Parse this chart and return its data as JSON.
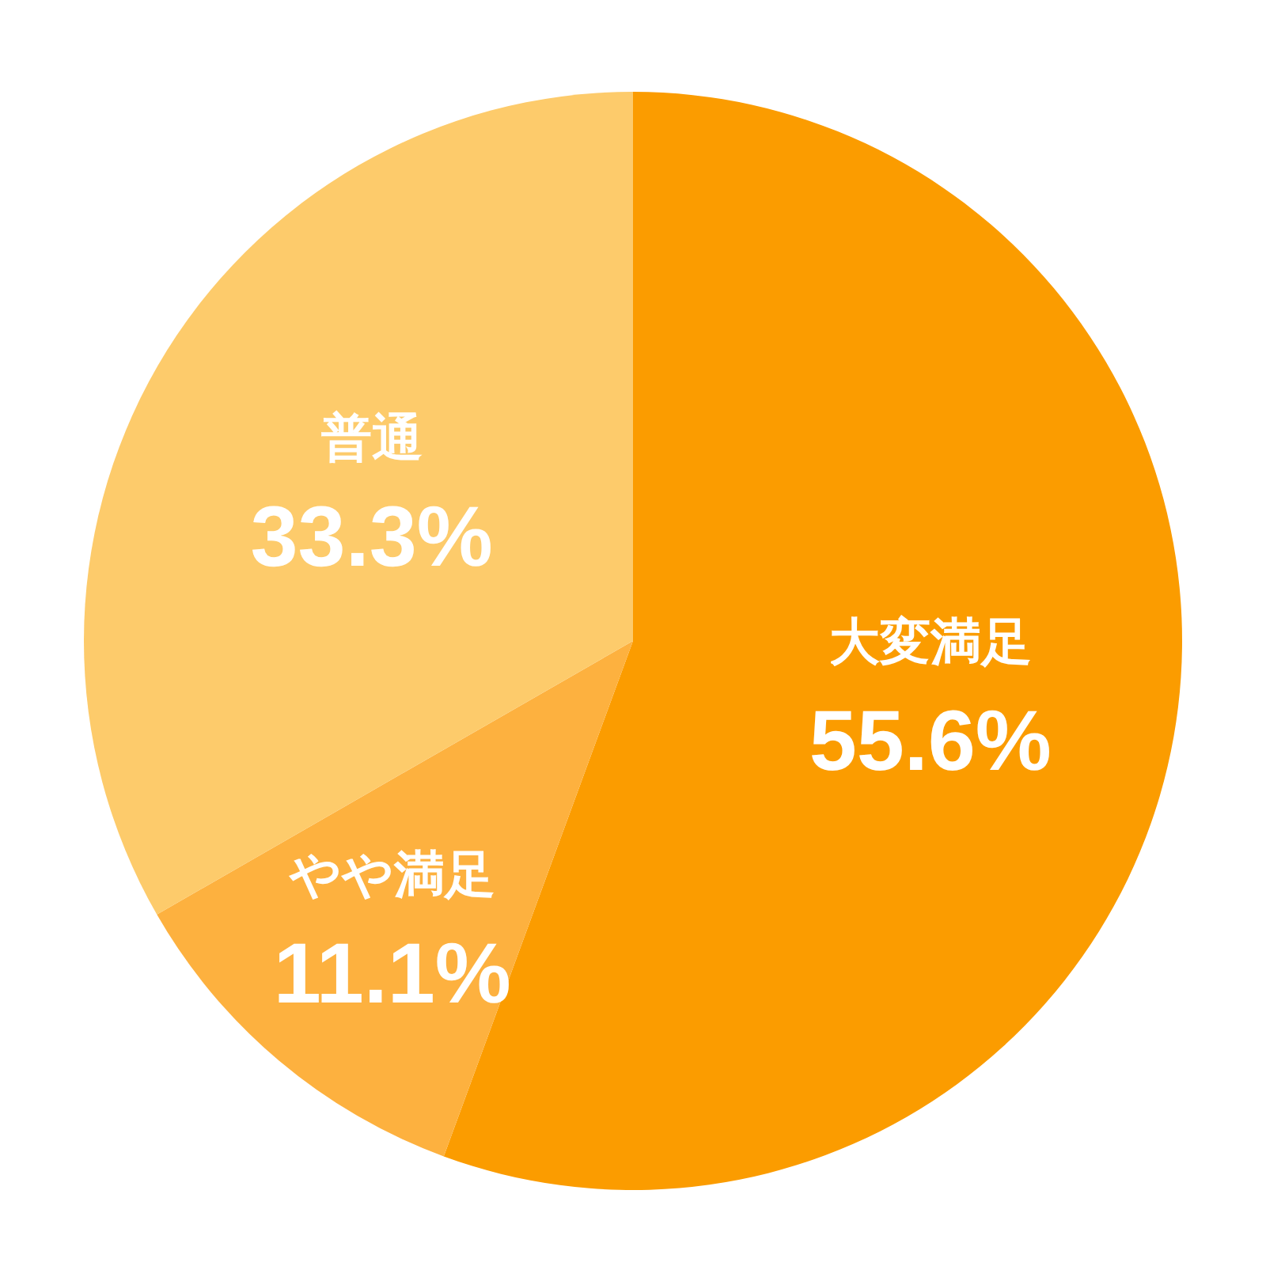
{
  "chart_data": {
    "type": "pie",
    "categories": [
      "大変満足",
      "やや満足",
      "普通"
    ],
    "values": [
      55.6,
      11.1,
      33.3
    ],
    "value_labels": [
      "55.6%",
      "11.1%",
      "33.3%"
    ],
    "colors": [
      "#fb9c00",
      "#fdb13f",
      "#fdcb6b"
    ]
  }
}
